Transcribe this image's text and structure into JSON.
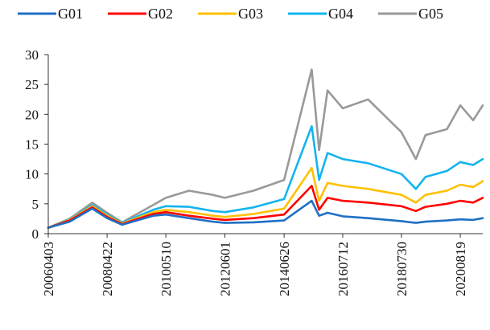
{
  "chart_data": {
    "type": "line",
    "title": "",
    "xlabel": "",
    "ylabel": "",
    "ylim": [
      0,
      30
    ],
    "yticks": [
      0,
      5,
      10,
      15,
      20,
      25,
      30
    ],
    "xticks": [
      "20060403",
      "20080422",
      "20100510",
      "20120601",
      "20140626",
      "20160712",
      "20180730",
      "20200819"
    ],
    "grid": false,
    "legend": "top",
    "x": [
      "20060403",
      "20070101",
      "20071016",
      "20080422",
      "20081031",
      "20091201",
      "20100510",
      "20110301",
      "20120101",
      "20120601",
      "20130601",
      "20140626",
      "20150612",
      "20150915",
      "20160101",
      "20160712",
      "20170601",
      "20180730",
      "20190201",
      "20190601",
      "20200301",
      "20200819",
      "20210201",
      "20210601"
    ],
    "series": [
      {
        "name": "G01",
        "color": "#1f6fc5",
        "values": [
          1.0,
          2.0,
          4.2,
          2.6,
          1.5,
          3.0,
          3.2,
          2.6,
          2.0,
          1.8,
          1.9,
          2.2,
          5.5,
          3.0,
          3.5,
          2.9,
          2.6,
          2.1,
          1.8,
          2.0,
          2.2,
          2.4,
          2.3,
          2.6
        ]
      },
      {
        "name": "G02",
        "color": "#ff0000",
        "values": [
          1.0,
          2.2,
          4.4,
          2.8,
          1.6,
          3.3,
          3.6,
          3.0,
          2.5,
          2.3,
          2.6,
          3.2,
          8.0,
          4.0,
          6.0,
          5.5,
          5.2,
          4.6,
          3.8,
          4.5,
          5.0,
          5.5,
          5.2,
          6.0
        ]
      },
      {
        "name": "G03",
        "color": "#ffc000",
        "values": [
          1.0,
          2.3,
          4.6,
          3.0,
          1.7,
          3.6,
          4.0,
          3.6,
          3.0,
          2.8,
          3.3,
          4.2,
          11.0,
          5.5,
          8.5,
          8.0,
          7.5,
          6.5,
          5.2,
          6.5,
          7.2,
          8.2,
          7.8,
          8.8
        ]
      },
      {
        "name": "G04",
        "color": "#13b4ee",
        "values": [
          1.0,
          2.4,
          4.8,
          3.2,
          1.8,
          4.0,
          4.6,
          4.5,
          3.8,
          3.6,
          4.4,
          5.8,
          18.0,
          9.0,
          13.5,
          12.5,
          11.8,
          10.0,
          7.5,
          9.5,
          10.5,
          12.0,
          11.5,
          12.5
        ]
      },
      {
        "name": "G05",
        "color": "#999999",
        "values": [
          1.0,
          2.5,
          5.2,
          3.5,
          1.9,
          4.8,
          6.0,
          7.2,
          6.5,
          6.0,
          7.2,
          9.0,
          27.5,
          14.0,
          24.0,
          21.0,
          22.5,
          17.0,
          12.5,
          16.5,
          17.5,
          21.5,
          19.0,
          21.5
        ]
      }
    ]
  }
}
